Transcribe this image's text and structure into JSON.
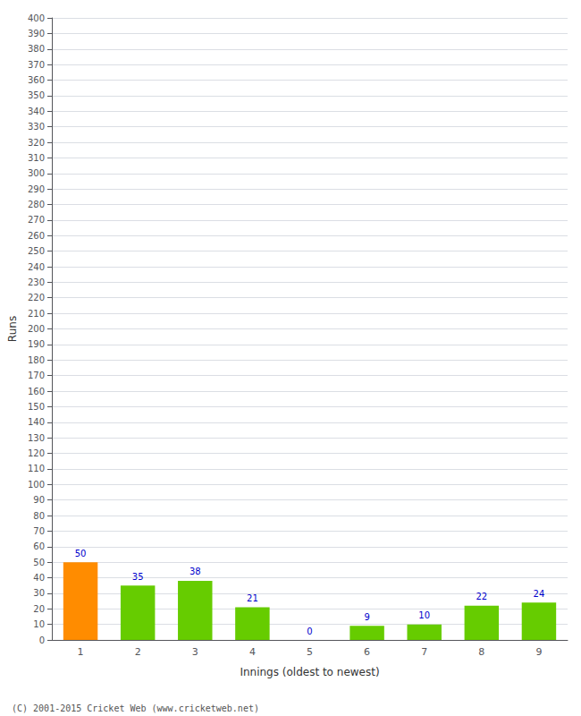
{
  "chart_data": {
    "type": "bar",
    "categories": [
      "1",
      "2",
      "3",
      "4",
      "5",
      "6",
      "7",
      "8",
      "9"
    ],
    "values": [
      50,
      35,
      38,
      21,
      0,
      9,
      10,
      22,
      24
    ],
    "colors": [
      "#ff8c00",
      "#66cc00",
      "#66cc00",
      "#66cc00",
      "#66cc00",
      "#66cc00",
      "#66cc00",
      "#66cc00",
      "#66cc00"
    ],
    "xlabel": "Innings (oldest to newest)",
    "ylabel": "Runs",
    "ylim": [
      0,
      400
    ],
    "yticks": [
      0,
      10,
      20,
      30,
      40,
      50,
      60,
      70,
      80,
      90,
      100,
      110,
      120,
      130,
      140,
      150,
      160,
      170,
      180,
      190,
      200,
      210,
      220,
      230,
      240,
      250,
      260,
      270,
      280,
      290,
      300,
      310,
      320,
      330,
      340,
      350,
      360,
      370,
      380,
      390,
      400
    ],
    "grid": true,
    "data_labels": true,
    "annotations": [
      "(C) 2001-2015 Cricket Web (www.cricketweb.net)"
    ]
  }
}
